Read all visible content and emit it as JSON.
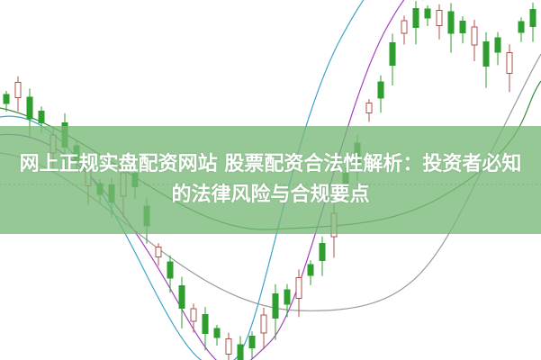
{
  "article": {
    "title": "网上正规实盘配资网站 股票配资合法性解析：投资者必知的法律风险与合规要点"
  },
  "colors": {
    "down_candle": "#2e9e2e",
    "up_candle": "#b0504a",
    "banner": "#78b978",
    "ma_lines": [
      "#3aa3c8",
      "#a040c0",
      "#3a8a3a",
      "#9a9a9a"
    ]
  }
}
